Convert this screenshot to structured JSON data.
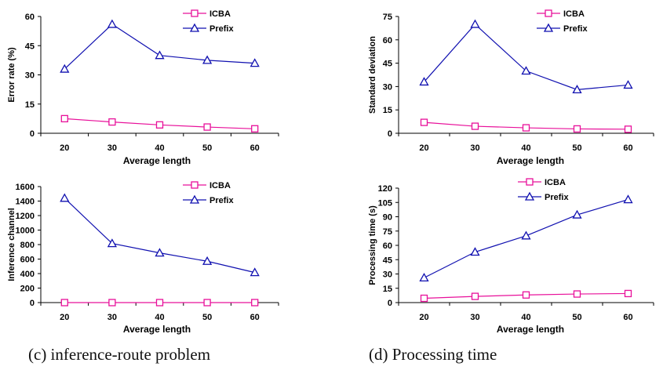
{
  "captions": {
    "c": "(c) inference-route problem",
    "d": "(d) Processing time"
  },
  "colors": {
    "icba": "#e8109a",
    "prefix": "#1010b0",
    "axis": "#000000"
  },
  "chart_data": [
    {
      "type": "line",
      "categories": [
        "20",
        "30",
        "40",
        "50",
        "60"
      ],
      "xlabel": "Average length",
      "ylabel": "Error rate (%)",
      "ylim": [
        0,
        60
      ],
      "yticks": [
        0,
        15,
        30,
        45,
        60
      ],
      "legend_position": "top-right",
      "grid": false,
      "series": [
        {
          "name": "ICBA",
          "marker": "square",
          "values": [
            7.5,
            5.8,
            4.3,
            3.2,
            2.3
          ]
        },
        {
          "name": "Prefix",
          "marker": "triangle",
          "values": [
            33,
            56,
            40,
            37.5,
            36
          ]
        }
      ]
    },
    {
      "type": "line",
      "categories": [
        "20",
        "30",
        "40",
        "50",
        "60"
      ],
      "xlabel": "Average length",
      "ylabel": "Standard deviation",
      "ylim": [
        0,
        75
      ],
      "yticks": [
        0,
        15,
        30,
        45,
        60,
        75
      ],
      "legend_position": "top-right",
      "grid": false,
      "series": [
        {
          "name": "ICBA",
          "marker": "square",
          "values": [
            7,
            4.5,
            3.5,
            2.8,
            2.6
          ]
        },
        {
          "name": "Prefix",
          "marker": "triangle",
          "values": [
            33,
            70,
            40,
            28,
            31
          ]
        }
      ]
    },
    {
      "type": "line",
      "categories": [
        "20",
        "30",
        "40",
        "50",
        "60"
      ],
      "xlabel": "Average length",
      "ylabel": "Inference channel",
      "ylim": [
        0,
        1600
      ],
      "yticks": [
        0,
        200,
        400,
        600,
        800,
        1000,
        1200,
        1400,
        1600
      ],
      "legend_position": "top-right",
      "grid": false,
      "series": [
        {
          "name": "ICBA",
          "marker": "square",
          "values": [
            0,
            0,
            0,
            0,
            0
          ]
        },
        {
          "name": "Prefix",
          "marker": "triangle",
          "values": [
            1440,
            815,
            685,
            570,
            415
          ]
        }
      ]
    },
    {
      "type": "line",
      "categories": [
        "20",
        "30",
        "40",
        "50",
        "60"
      ],
      "xlabel": "Average length",
      "ylabel": "Processing time (s)",
      "ylim": [
        0,
        120
      ],
      "yticks": [
        0,
        15,
        30,
        45,
        60,
        75,
        90,
        105,
        120
      ],
      "legend_position": "top-center",
      "grid": false,
      "series": [
        {
          "name": "ICBA",
          "marker": "square",
          "values": [
            4.5,
            6.5,
            8,
            9,
            9.5
          ]
        },
        {
          "name": "Prefix",
          "marker": "triangle",
          "values": [
            26,
            53,
            70,
            92,
            108
          ]
        }
      ]
    }
  ]
}
